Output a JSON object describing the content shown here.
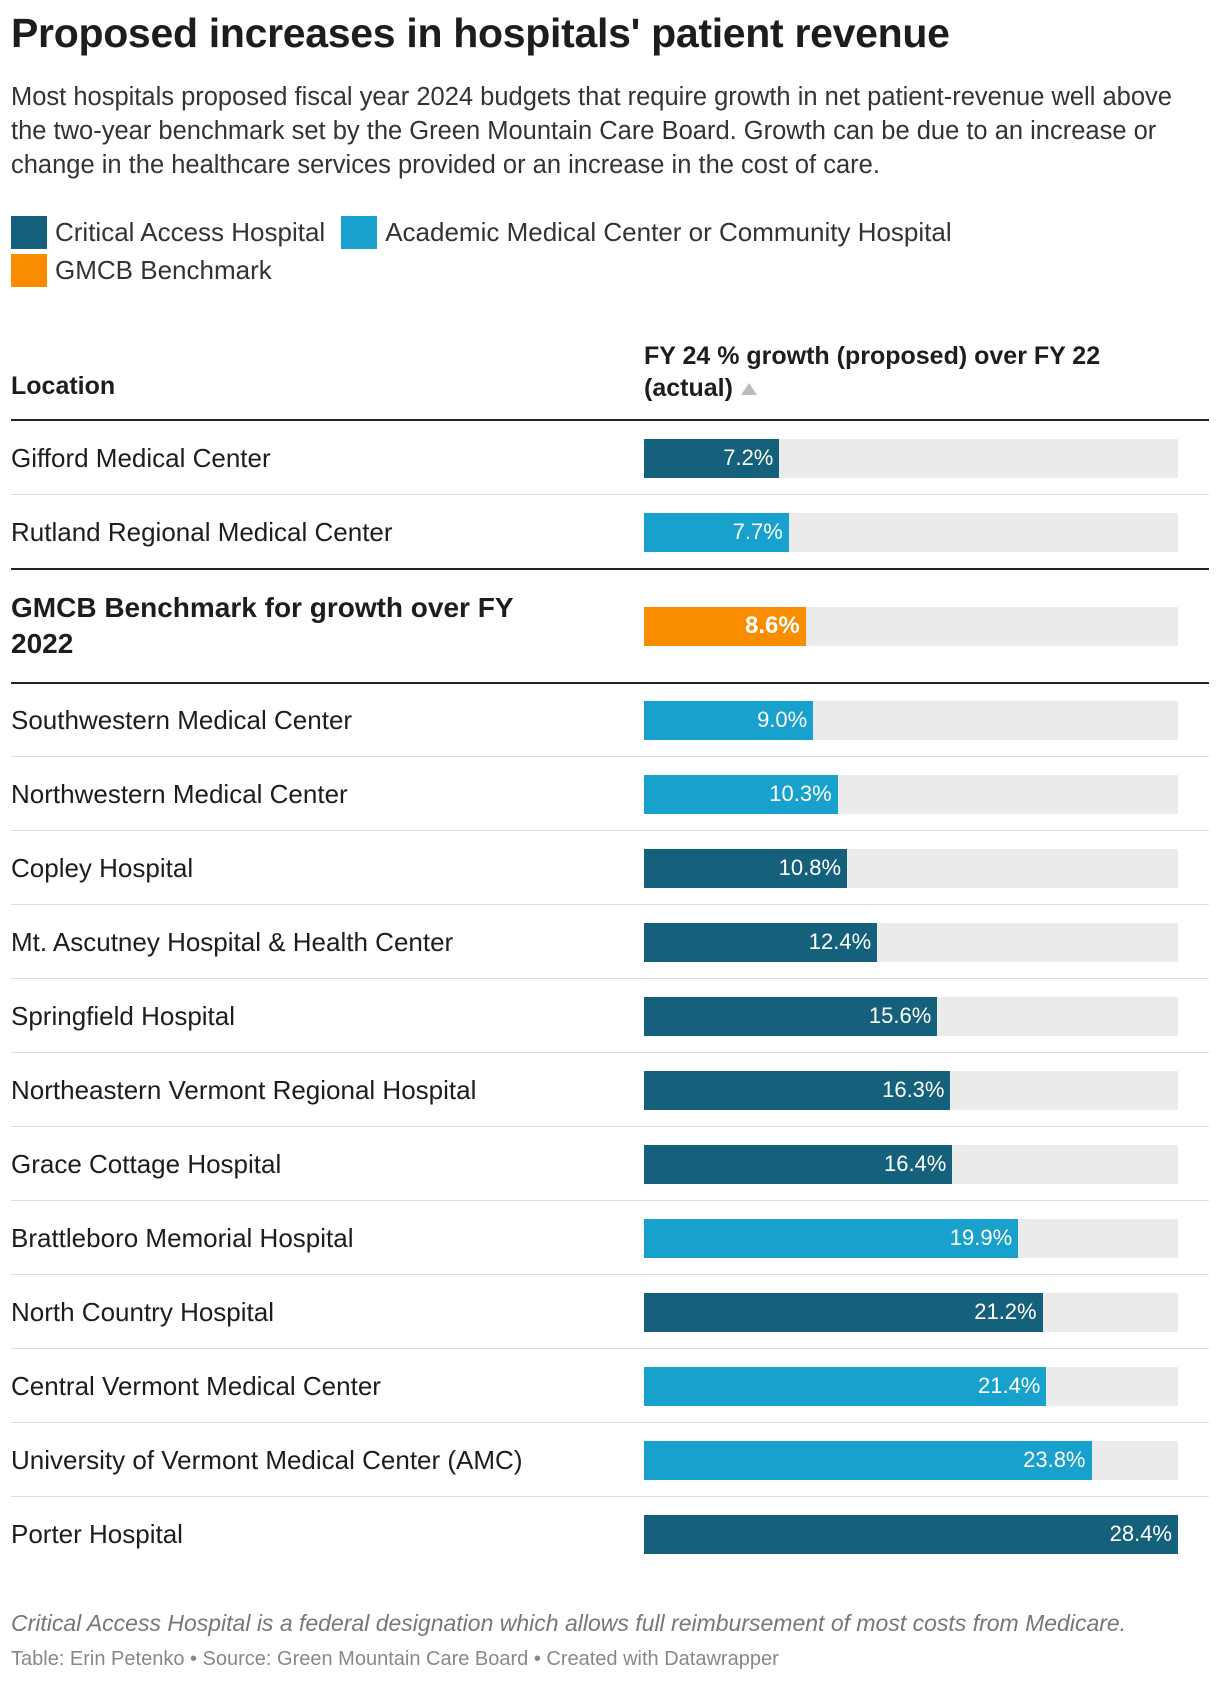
{
  "chart_data": {
    "type": "bar",
    "title": "Proposed increases in hospitals' patient revenue",
    "subtitle": "Most hospitals proposed fiscal year 2024 budgets that require growth in net patient-revenue well above the two-year benchmark set by the Green Mountain Care Board. Growth can be due to an increase or change in the healthcare services provided or an increase in the cost of care.",
    "legend": [
      {
        "name": "Critical Access Hospital",
        "color": "#15607a"
      },
      {
        "name": "Academic Medical Center or Community Hospital",
        "color": "#18a1cd"
      },
      {
        "name": "GMCB Benchmark",
        "color": "#fa8c00"
      }
    ],
    "column_headers": [
      "Location",
      "FY 24 % growth (proposed) over FY 22 (actual)"
    ],
    "categories": [
      "Gifford Medical Center",
      "Rutland Regional Medical Center",
      "GMCB Benchmark for growth over FY 2022",
      "Southwestern Medical Center",
      "Northwestern Medical Center",
      "Copley Hospital",
      "Mt. Ascutney Hospital & Health Center",
      "Springfield Hospital",
      "Northeastern Vermont Regional Hospital",
      "Grace Cottage Hospital",
      "Brattleboro Memorial Hospital",
      "North Country Hospital",
      "Central Vermont Medical Center",
      "University of Vermont Medical Center (AMC)",
      "Porter Hospital"
    ],
    "values": [
      7.2,
      7.7,
      8.6,
      9.0,
      10.3,
      10.8,
      12.4,
      15.6,
      16.3,
      16.4,
      19.9,
      21.2,
      21.4,
      23.8,
      28.4
    ],
    "value_labels": [
      "7.2%",
      "7.7%",
      "8.6%",
      "9.0%",
      "10.3%",
      "10.8%",
      "12.4%",
      "15.6%",
      "16.3%",
      "16.4%",
      "19.9%",
      "21.2%",
      "21.4%",
      "23.8%",
      "28.4%"
    ],
    "colors": [
      "#15607a",
      "#18a1cd",
      "#fa8c00",
      "#18a1cd",
      "#18a1cd",
      "#15607a",
      "#15607a",
      "#15607a",
      "#15607a",
      "#15607a",
      "#18a1cd",
      "#15607a",
      "#18a1cd",
      "#18a1cd",
      "#15607a"
    ],
    "bold_rows": [
      2
    ],
    "xlim": [
      0,
      28.4
    ],
    "note": "Critical Access Hospital is a federal designation which allows full reimbursement of most costs from Medicare.",
    "source": "Table: Erin Petenko • Source: Green Mountain Care Board • Created with Datawrapper"
  }
}
